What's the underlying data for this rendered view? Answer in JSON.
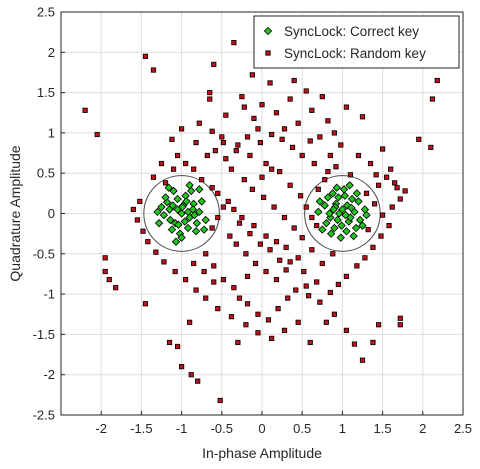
{
  "chart_data": {
    "type": "scatter",
    "title": "",
    "xlabel": "In-phase Amplitude",
    "ylabel": "Quadrature Amplitude",
    "xlim": [
      -2.5,
      2.5
    ],
    "ylim": [
      -2.5,
      2.5
    ],
    "x_ticks": [
      -2,
      -1.5,
      -1,
      -0.5,
      0,
      0.5,
      1,
      1.5,
      2,
      2.5
    ],
    "x_tick_labels": [
      "-2",
      "-1.5",
      "-1",
      "-0.5",
      "0",
      "0.5",
      "1",
      "1.5",
      "2",
      "2.5"
    ],
    "y_ticks": [
      2.5,
      2,
      1.5,
      1,
      0.5,
      0,
      -0.5,
      -1,
      -1.5,
      -2,
      -2.5
    ],
    "y_tick_labels": [
      "2.5",
      "2",
      "1.5",
      "1",
      "0.5",
      "0",
      "-0.5",
      "-1",
      "-1.5",
      "-2",
      "-2.5"
    ],
    "grid": true,
    "legend_position": "top-right",
    "circles": [
      {
        "cx": -1,
        "cy": 0,
        "r": 0.47
      },
      {
        "cx": 1,
        "cy": 0,
        "r": 0.47
      }
    ],
    "series": [
      {
        "name": "SyncLock: Correct key",
        "marker": "diamond",
        "color": "#22c41e",
        "edge_color": "#000000",
        "points": [
          [
            -1.15,
            0.05
          ],
          [
            -1.08,
            -0.12
          ],
          [
            -0.98,
            0.1
          ],
          [
            -0.9,
            -0.05
          ],
          [
            -1.22,
            -0.02
          ],
          [
            -1.05,
            0.18
          ],
          [
            -0.85,
            0.12
          ],
          [
            -0.92,
            -0.18
          ],
          [
            -1.18,
            0.14
          ],
          [
            -1.12,
            -0.2
          ],
          [
            -0.78,
            0.02
          ],
          [
            -1.0,
            0.0
          ],
          [
            -0.95,
            0.22
          ],
          [
            -1.25,
            0.08
          ],
          [
            -1.02,
            -0.25
          ],
          [
            -0.88,
            0.28
          ],
          [
            -1.1,
            0.28
          ],
          [
            -0.7,
            -0.08
          ],
          [
            -1.28,
            -0.12
          ],
          [
            -0.82,
            -0.22
          ],
          [
            -1.05,
            0.05
          ],
          [
            -0.96,
            -0.1
          ],
          [
            -1.14,
            -0.08
          ],
          [
            -0.86,
            0.05
          ],
          [
            -1.2,
            0.2
          ],
          [
            -0.75,
            0.15
          ],
          [
            -1.0,
            -0.3
          ],
          [
            -1.3,
            0.02
          ],
          [
            -0.9,
            0.35
          ],
          [
            -0.72,
            -0.2
          ],
          [
            -0.78,
            0.3
          ],
          [
            -1.07,
            -0.35
          ],
          [
            -0.94,
            0.15
          ],
          [
            -1.16,
            0.32
          ],
          [
            -0.81,
            -0.12
          ],
          [
            -0.99,
            0.08
          ],
          [
            -1.04,
            -0.14
          ],
          [
            -0.92,
            0.02
          ],
          [
            -1.11,
            0.1
          ],
          [
            -0.84,
            -0.02
          ],
          [
            1.0,
            0.05
          ],
          [
            1.08,
            -0.1
          ],
          [
            0.92,
            0.12
          ],
          [
            0.85,
            -0.05
          ],
          [
            1.15,
            0.02
          ],
          [
            0.95,
            0.2
          ],
          [
            1.05,
            -0.22
          ],
          [
            0.78,
            0.1
          ],
          [
            1.22,
            -0.08
          ],
          [
            0.9,
            -0.18
          ],
          [
            1.12,
            0.18
          ],
          [
            0.8,
            -0.12
          ],
          [
            1.2,
            0.15
          ],
          [
            0.98,
            -0.3
          ],
          [
            1.02,
            0.3
          ],
          [
            0.7,
            0.02
          ],
          [
            1.25,
            -0.15
          ],
          [
            0.88,
            0.25
          ],
          [
            1.1,
            -0.05
          ],
          [
            0.75,
            -0.2
          ],
          [
            1.18,
            0.25
          ],
          [
            0.94,
            -0.08
          ],
          [
            1.06,
            0.1
          ],
          [
            0.82,
            0.2
          ],
          [
            1.28,
            0.05
          ],
          [
            0.96,
            0.0
          ],
          [
            1.14,
            -0.28
          ],
          [
            0.86,
            -0.25
          ],
          [
            1.03,
            0.22
          ],
          [
            0.91,
            0.08
          ],
          [
            0.72,
            0.15
          ],
          [
            1.3,
            -0.02
          ],
          [
            1.09,
            0.35
          ],
          [
            0.99,
            -0.15
          ],
          [
            0.84,
            0.0
          ],
          [
            1.17,
            -0.18
          ],
          [
            0.93,
            0.32
          ],
          [
            1.04,
            -0.02
          ],
          [
            0.89,
            0.05
          ],
          [
            1.11,
            0.07
          ]
        ]
      },
      {
        "name": "SyncLock: Random key",
        "marker": "square",
        "color": "#c0101a",
        "edge_color": "#000000",
        "points": [
          [
            -2.2,
            1.28
          ],
          [
            -1.45,
            1.95
          ],
          [
            -1.35,
            1.78
          ],
          [
            -2.05,
            0.98
          ],
          [
            -1.2,
            0.38
          ],
          [
            -1.52,
            0.15
          ],
          [
            -1.95,
            -0.55
          ],
          [
            -1.95,
            -0.72
          ],
          [
            -1.9,
            -0.82
          ],
          [
            -1.82,
            -0.92
          ],
          [
            -1.45,
            -1.12
          ],
          [
            -1.15,
            -1.6
          ],
          [
            -1.05,
            -1.65
          ],
          [
            -1.0,
            -1.9
          ],
          [
            -0.88,
            -2.0
          ],
          [
            -0.8,
            -2.08
          ],
          [
            -0.52,
            -2.32
          ],
          [
            -0.6,
            1.85
          ],
          [
            -0.35,
            2.12
          ],
          [
            -0.65,
            1.5
          ],
          [
            -0.65,
            1.42
          ],
          [
            -0.22,
            1.32
          ],
          [
            -0.1,
            1.18
          ],
          [
            -0.05,
            1.05
          ],
          [
            -0.5,
            0.95
          ],
          [
            -0.3,
            0.85
          ],
          [
            -0.15,
            0.72
          ],
          [
            0.05,
            0.62
          ],
          [
            0.22,
            0.52
          ],
          [
            0.28,
            1.05
          ],
          [
            0.45,
            1.12
          ],
          [
            0.62,
            1.28
          ],
          [
            0.72,
            0.95
          ],
          [
            0.85,
            0.72
          ],
          [
            0.92,
            0.58
          ],
          [
            1.1,
            0.48
          ],
          [
            1.05,
            1.32
          ],
          [
            1.55,
            0.45
          ],
          [
            1.65,
            0.38
          ],
          [
            1.68,
            0.32
          ],
          [
            1.45,
            0.35
          ],
          [
            1.3,
            0.25
          ],
          [
            1.5,
            0.8
          ],
          [
            1.95,
            0.92
          ],
          [
            2.12,
            1.42
          ],
          [
            2.1,
            0.82
          ],
          [
            2.18,
            1.65
          ],
          [
            1.72,
            -1.3
          ],
          [
            1.72,
            -1.38
          ],
          [
            1.45,
            -1.38
          ],
          [
            1.15,
            -1.62
          ],
          [
            1.25,
            -1.82
          ],
          [
            1.38,
            -1.6
          ],
          [
            1.05,
            -1.45
          ],
          [
            0.9,
            -1.25
          ],
          [
            0.72,
            -1.1
          ],
          [
            0.55,
            -0.9
          ],
          [
            0.52,
            -0.72
          ],
          [
            0.45,
            -0.55
          ],
          [
            0.3,
            -0.42
          ],
          [
            0.18,
            -0.35
          ],
          [
            0.05,
            -0.28
          ],
          [
            -0.1,
            -0.15
          ],
          [
            -0.25,
            -0.05
          ],
          [
            -0.35,
            0.05
          ],
          [
            -0.42,
            0.15
          ],
          [
            -0.55,
            0.25
          ],
          [
            -0.62,
            0.32
          ],
          [
            -0.75,
            0.42
          ],
          [
            -0.85,
            0.55
          ],
          [
            -0.95,
            0.62
          ],
          [
            -1.05,
            0.72
          ],
          [
            -1.1,
            0.55
          ],
          [
            -1.25,
            0.62
          ],
          [
            -1.35,
            0.45
          ],
          [
            -0.7,
            -0.5
          ],
          [
            -0.6,
            -0.65
          ],
          [
            -0.48,
            -0.82
          ],
          [
            -0.35,
            -0.92
          ],
          [
            -0.28,
            -1.05
          ],
          [
            -0.18,
            -1.12
          ],
          [
            -0.05,
            -1.25
          ],
          [
            0.08,
            -1.32
          ],
          [
            0.2,
            -1.18
          ],
          [
            0.32,
            -1.05
          ],
          [
            0.42,
            -0.95
          ],
          [
            0.58,
            -1.02
          ],
          [
            0.68,
            -0.85
          ],
          [
            0.75,
            -0.62
          ],
          [
            0.62,
            -0.45
          ],
          [
            0.5,
            -0.3
          ],
          [
            0.4,
            -0.18
          ],
          [
            0.28,
            -0.05
          ],
          [
            0.15,
            0.08
          ],
          [
            0.02,
            0.2
          ],
          [
            -0.12,
            0.3
          ],
          [
            -0.22,
            0.42
          ],
          [
            -0.38,
            0.55
          ],
          [
            -0.45,
            0.68
          ],
          [
            -0.58,
            0.78
          ],
          [
            0.35,
            0.35
          ],
          [
            0.48,
            0.22
          ],
          [
            0.55,
            0.08
          ],
          [
            0.62,
            -0.05
          ],
          [
            0.68,
            -0.15
          ],
          [
            0.7,
            0.3
          ],
          [
            0.78,
            0.42
          ],
          [
            0.82,
            0.52
          ],
          [
            0.65,
            0.62
          ],
          [
            0.5,
            0.72
          ],
          [
            0.38,
            0.82
          ],
          [
            0.25,
            0.92
          ],
          [
            0.12,
            0.98
          ],
          [
            -0.02,
            0.88
          ],
          [
            -0.18,
            0.95
          ],
          [
            -0.32,
            0.78
          ],
          [
            -0.48,
            0.88
          ],
          [
            -0.62,
            1.02
          ],
          [
            -0.78,
            1.12
          ],
          [
            -0.45,
            1.22
          ],
          [
            -0.25,
            1.45
          ],
          [
            0.0,
            1.35
          ],
          [
            0.18,
            1.25
          ],
          [
            0.35,
            1.42
          ],
          [
            0.1,
            1.62
          ],
          [
            -0.12,
            1.72
          ],
          [
            0.4,
            1.65
          ],
          [
            0.55,
            1.52
          ],
          [
            0.82,
            1.15
          ],
          [
            0.98,
            0.85
          ],
          [
            1.2,
            0.72
          ],
          [
            1.35,
            0.62
          ],
          [
            1.42,
            0.48
          ],
          [
            1.6,
            0.55
          ],
          [
            1.78,
            0.28
          ],
          [
            1.72,
            0.18
          ],
          [
            1.62,
            0.08
          ],
          [
            1.5,
            -0.02
          ],
          [
            1.58,
            -0.15
          ],
          [
            1.48,
            -0.28
          ],
          [
            1.38,
            -0.42
          ],
          [
            1.28,
            -0.55
          ],
          [
            1.18,
            -0.65
          ],
          [
            1.05,
            -0.78
          ],
          [
            0.95,
            -0.88
          ],
          [
            0.85,
            -0.98
          ],
          [
            0.45,
            -1.35
          ],
          [
            0.28,
            -1.45
          ],
          [
            0.12,
            -1.55
          ],
          [
            -0.05,
            -1.48
          ],
          [
            -0.2,
            -1.38
          ],
          [
            -0.38,
            -1.28
          ],
          [
            -0.55,
            -1.18
          ],
          [
            -0.7,
            -1.05
          ],
          [
            -0.82,
            -0.95
          ],
          [
            -0.95,
            -0.82
          ],
          [
            -1.08,
            -0.72
          ],
          [
            -1.22,
            -0.6
          ],
          [
            -1.32,
            -0.48
          ],
          [
            -1.42,
            -0.35
          ],
          [
            -1.48,
            -0.22
          ],
          [
            -1.55,
            -0.08
          ],
          [
            -1.6,
            0.05
          ],
          [
            -0.62,
            -0.18
          ],
          [
            -0.55,
            -0.05
          ],
          [
            -0.48,
            0.08
          ],
          [
            -0.4,
            -0.28
          ],
          [
            -0.32,
            -0.38
          ],
          [
            -0.2,
            -0.5
          ],
          [
            -0.08,
            -0.62
          ],
          [
            0.05,
            -0.72
          ],
          [
            0.18,
            -0.82
          ],
          [
            0.3,
            -0.7
          ],
          [
            0.22,
            -0.58
          ],
          [
            0.1,
            -0.45
          ],
          [
            -0.02,
            -0.38
          ],
          [
            -0.15,
            -0.25
          ],
          [
            -0.28,
            -0.12
          ],
          [
            0.0,
            0.45
          ],
          [
            0.12,
            0.55
          ],
          [
            -0.6,
            -0.85
          ],
          [
            -0.72,
            -0.72
          ],
          [
            -0.85,
            -0.62
          ],
          [
            -0.18,
            -0.78
          ],
          [
            0.35,
            -0.6
          ],
          [
            0.88,
            -0.5
          ],
          [
            1.32,
            -0.2
          ],
          [
            1.4,
            0.12
          ],
          [
            -1.0,
            1.05
          ],
          [
            -1.12,
            0.92
          ],
          [
            -0.82,
            0.88
          ],
          [
            -0.68,
            0.72
          ],
          [
            0.6,
            0.9
          ],
          [
            0.9,
            1.0
          ],
          [
            1.25,
            1.2
          ],
          [
            0.75,
            1.45
          ],
          [
            -0.3,
            -1.6
          ],
          [
            0.6,
            -1.6
          ],
          [
            0.8,
            -1.35
          ],
          [
            -0.9,
            -1.35
          ]
        ]
      }
    ]
  }
}
